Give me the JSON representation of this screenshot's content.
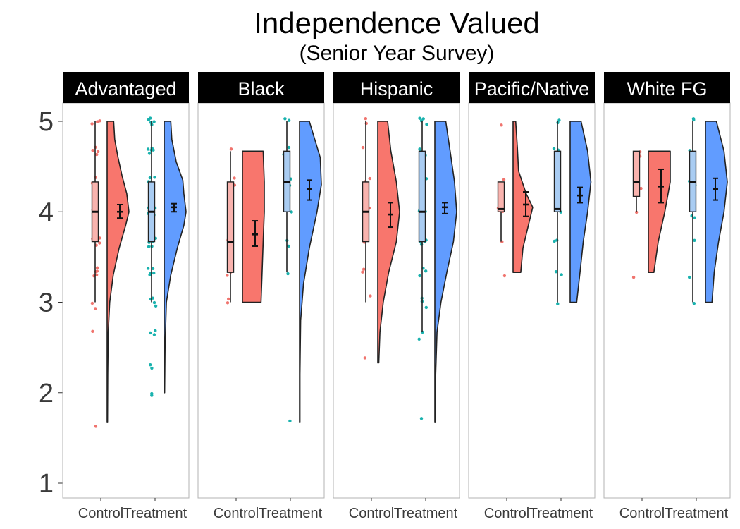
{
  "chart_data": {
    "type": "raincloud",
    "title": "Independence Valued",
    "subtitle": "(Senior Year Survey)",
    "xlabel": "",
    "ylabel": "",
    "ylim": [
      0.85,
      5.2
    ],
    "yticks": [
      1,
      2,
      3,
      4,
      5
    ],
    "grid": false,
    "legend": "none",
    "groups": [
      "Control",
      "Treatment"
    ],
    "colors": {
      "Control": {
        "point": "#f0746e",
        "cloud": "#f8766d",
        "box": "#f9b3ae"
      },
      "Treatment": {
        "point": "#19b2ae",
        "cloud": "#619cff",
        "box": "#a9ccf2"
      }
    },
    "panels": [
      {
        "name": "Advantaged",
        "groups": [
          {
            "group": "Control",
            "box": {
              "min": 3.0,
              "q1": 3.67,
              "median": 4.0,
              "q3": 4.33,
              "max": 5.0
            },
            "mean": 4.0,
            "ci": [
              3.93,
              4.08
            ],
            "range": [
              1.67,
              5.0
            ],
            "density": [
              [
                1.67,
                0.02
              ],
              [
                2.2,
                0.03
              ],
              [
                2.67,
                0.05
              ],
              [
                3.0,
                0.12
              ],
              [
                3.3,
                0.28
              ],
              [
                3.6,
                0.55
              ],
              [
                3.85,
                0.85
              ],
              [
                4.0,
                1.0
              ],
              [
                4.2,
                0.9
              ],
              [
                4.4,
                0.68
              ],
              [
                4.6,
                0.5
              ],
              [
                4.8,
                0.35
              ],
              [
                5.0,
                0.3
              ]
            ],
            "points": [
              1.63,
              2.67,
              2.93,
              3.0,
              3.3,
              3.3,
              3.33,
              3.33,
              3.37,
              3.63,
              3.67,
              3.67,
              3.7,
              3.7,
              3.97,
              4.0,
              4.0,
              4.0,
              4.03,
              4.03,
              4.3,
              4.33,
              4.33,
              4.37,
              4.63,
              4.67,
              4.67,
              4.7,
              4.97,
              5.0,
              5.0
            ]
          },
          {
            "group": "Treatment",
            "box": {
              "min": 3.0,
              "q1": 3.67,
              "median": 4.0,
              "q3": 4.33,
              "max": 5.0
            },
            "mean": 4.05,
            "ci": [
              4.0,
              4.09
            ],
            "range": [
              2.0,
              5.0
            ],
            "density": [
              [
                2.0,
                0.02
              ],
              [
                2.5,
                0.04
              ],
              [
                3.0,
                0.1
              ],
              [
                3.3,
                0.3
              ],
              [
                3.6,
                0.6
              ],
              [
                3.85,
                0.9
              ],
              [
                4.0,
                1.0
              ],
              [
                4.2,
                0.9
              ],
              [
                4.35,
                0.85
              ],
              [
                4.55,
                0.55
              ],
              [
                4.8,
                0.35
              ],
              [
                5.0,
                0.3
              ]
            ],
            "points": [
              1.97,
              2.0,
              2.27,
              2.3,
              2.63,
              2.67,
              2.7,
              2.97,
              3.0,
              3.03,
              3.03,
              3.3,
              3.33,
              3.33,
              3.37,
              3.37,
              3.63,
              3.63,
              3.67,
              3.67,
              3.7,
              3.97,
              3.97,
              4.0,
              4.0,
              4.0,
              4.03,
              4.03,
              4.03,
              4.3,
              4.33,
              4.33,
              4.37,
              4.37,
              4.63,
              4.67,
              4.67,
              4.7,
              4.7,
              4.97,
              5.0,
              5.0,
              5.03,
              5.03
            ]
          }
        ]
      },
      {
        "name": "Black",
        "groups": [
          {
            "group": "Control",
            "box": {
              "min": 3.0,
              "q1": 3.33,
              "median": 3.67,
              "q3": 4.33,
              "max": 4.67
            },
            "mean": 3.75,
            "ci": [
              3.62,
              3.9
            ],
            "range": [
              3.0,
              4.67
            ],
            "density": [
              [
                3.0,
                0.85
              ],
              [
                3.33,
                0.9
              ],
              [
                3.67,
                0.95
              ],
              [
                4.0,
                1.0
              ],
              [
                4.33,
                1.0
              ],
              [
                4.67,
                0.95
              ]
            ],
            "points": [
              2.98,
              3.03,
              3.3,
              3.33,
              3.37,
              3.67,
              3.7,
              4.0,
              4.3,
              4.33,
              4.37,
              4.7
            ]
          },
          {
            "group": "Treatment",
            "box": {
              "min": 3.33,
              "q1": 4.0,
              "median": 4.33,
              "q3": 4.67,
              "max": 5.0
            },
            "mean": 4.25,
            "ci": [
              4.13,
              4.35
            ],
            "range": [
              1.67,
              5.0
            ],
            "density": [
              [
                1.67,
                0.02
              ],
              [
                2.2,
                0.02
              ],
              [
                2.8,
                0.05
              ],
              [
                3.2,
                0.18
              ],
              [
                3.6,
                0.45
              ],
              [
                4.0,
                0.8
              ],
              [
                4.3,
                1.0
              ],
              [
                4.6,
                0.95
              ],
              [
                5.0,
                0.45
              ]
            ],
            "points": [
              1.7,
              3.33,
              3.63,
              3.67,
              4.0,
              4.03,
              4.3,
              4.33,
              4.37,
              4.63,
              4.67,
              4.7,
              5.0,
              5.03
            ]
          }
        ]
      },
      {
        "name": "Hispanic",
        "groups": [
          {
            "group": "Control",
            "box": {
              "min": 3.0,
              "q1": 3.67,
              "median": 4.0,
              "q3": 4.33,
              "max": 5.0
            },
            "mean": 3.97,
            "ci": [
              3.83,
              4.1
            ],
            "range": [
              2.33,
              5.0
            ],
            "density": [
              [
                2.33,
                0.05
              ],
              [
                2.67,
                0.1
              ],
              [
                3.0,
                0.25
              ],
              [
                3.33,
                0.5
              ],
              [
                3.67,
                0.85
              ],
              [
                4.0,
                1.0
              ],
              [
                4.33,
                0.85
              ],
              [
                4.67,
                0.6
              ],
              [
                5.0,
                0.45
              ]
            ],
            "points": [
              2.37,
              3.07,
              3.33,
              3.37,
              3.67,
              3.7,
              4.0,
              4.03,
              4.33,
              4.37,
              4.7,
              4.97,
              5.03
            ]
          },
          {
            "group": "Treatment",
            "box": {
              "min": 2.67,
              "q1": 3.67,
              "median": 4.0,
              "q3": 4.67,
              "max": 5.0
            },
            "mean": 4.05,
            "ci": [
              3.98,
              4.1
            ],
            "range": [
              1.67,
              5.0
            ],
            "density": [
              [
                1.67,
                0.02
              ],
              [
                2.2,
                0.04
              ],
              [
                2.67,
                0.1
              ],
              [
                3.0,
                0.28
              ],
              [
                3.33,
                0.55
              ],
              [
                3.67,
                0.85
              ],
              [
                4.0,
                1.0
              ],
              [
                4.33,
                0.9
              ],
              [
                4.67,
                0.7
              ],
              [
                5.0,
                0.5
              ]
            ],
            "points": [
              1.7,
              2.6,
              2.67,
              2.93,
              3.0,
              3.03,
              3.3,
              3.33,
              3.37,
              3.63,
              3.67,
              3.67,
              3.7,
              3.97,
              4.0,
              4.0,
              4.03,
              4.03,
              4.3,
              4.33,
              4.37,
              4.63,
              4.67,
              4.7,
              4.97,
              5.0,
              5.03,
              5.03
            ]
          }
        ]
      },
      {
        "name": "Pacific/Native",
        "groups": [
          {
            "group": "Control",
            "box": {
              "min": 3.67,
              "q1": 4.0,
              "median": 4.03,
              "q3": 4.33,
              "max": 4.33
            },
            "mean": 4.08,
            "ci": [
              3.95,
              4.22
            ],
            "range": [
              3.33,
              5.0
            ],
            "density": [
              [
                3.33,
                0.35
              ],
              [
                3.6,
                0.45
              ],
              [
                3.85,
                0.7
              ],
              [
                4.05,
                0.9
              ],
              [
                4.2,
                0.6
              ],
              [
                4.45,
                0.25
              ],
              [
                4.7,
                0.2
              ],
              [
                5.0,
                0.12
              ]
            ],
            "points": [
              3.3,
              3.67,
              4.0,
              4.03,
              4.33,
              4.37,
              4.97
            ]
          },
          {
            "group": "Treatment",
            "box": {
              "min": 3.0,
              "q1": 4.0,
              "median": 4.03,
              "q3": 4.67,
              "max": 5.0
            },
            "mean": 4.18,
            "ci": [
              4.1,
              4.27
            ],
            "range": [
              3.0,
              5.0
            ],
            "density": [
              [
                3.0,
                0.3
              ],
              [
                3.33,
                0.45
              ],
              [
                3.67,
                0.6
              ],
              [
                4.0,
                0.8
              ],
              [
                4.33,
                0.95
              ],
              [
                4.67,
                0.8
              ],
              [
                5.0,
                0.5
              ]
            ],
            "points": [
              2.97,
              3.3,
              3.33,
              3.67,
              3.7,
              4.0,
              4.03,
              4.03,
              4.3,
              4.33,
              4.37,
              4.63,
              4.67,
              4.7,
              4.97,
              5.0
            ]
          }
        ]
      },
      {
        "name": "White FG",
        "groups": [
          {
            "group": "Control",
            "box": {
              "min": 4.0,
              "q1": 4.17,
              "median": 4.33,
              "q3": 4.67,
              "max": 4.67
            },
            "mean": 4.28,
            "ci": [
              4.1,
              4.47
            ],
            "range": [
              3.33,
              4.67
            ],
            "density": [
              [
                3.33,
                0.25
              ],
              [
                3.67,
                0.45
              ],
              [
                4.0,
                0.75
              ],
              [
                4.33,
                1.0
              ],
              [
                4.67,
                1.0
              ]
            ],
            "points": [
              3.27,
              4.0,
              4.27,
              4.33,
              4.63,
              4.67
            ]
          },
          {
            "group": "Treatment",
            "box": {
              "min": 3.0,
              "q1": 4.0,
              "median": 4.33,
              "q3": 4.67,
              "max": 5.0
            },
            "mean": 4.25,
            "ci": [
              4.13,
              4.37
            ],
            "range": [
              3.0,
              5.0
            ],
            "density": [
              [
                3.0,
                0.3
              ],
              [
                3.33,
                0.4
              ],
              [
                3.67,
                0.6
              ],
              [
                4.0,
                0.85
              ],
              [
                4.33,
                1.0
              ],
              [
                4.67,
                0.85
              ],
              [
                5.0,
                0.5
              ]
            ],
            "points": [
              3.0,
              3.27,
              3.67,
              3.93,
              3.97,
              4.0,
              4.3,
              4.33,
              4.63,
              4.67,
              5.03,
              5.03
            ]
          }
        ]
      }
    ]
  }
}
